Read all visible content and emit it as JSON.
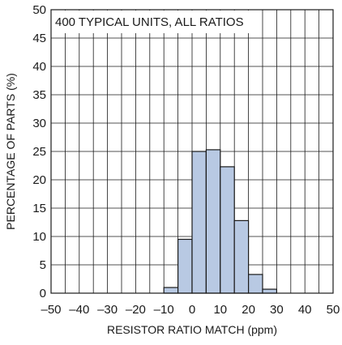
{
  "chart_data": {
    "type": "bar",
    "title": "",
    "annotation": "400 TYPICAL UNITS, ALL RATIOS",
    "xlabel": "RESISTOR RATIO MATCH (ppm)",
    "ylabel": "PERCENTAGE OF PARTS (%)",
    "xlim": [
      -50,
      50
    ],
    "ylim": [
      0,
      50
    ],
    "x_ticks": [
      "–50",
      "–40",
      "–30",
      "–20",
      "–10",
      "0",
      "10",
      "20",
      "30",
      "40",
      "50"
    ],
    "y_ticks": [
      "0",
      "5",
      "10",
      "15",
      "20",
      "25",
      "30",
      "35",
      "40",
      "45",
      "50"
    ],
    "grid": true,
    "bar_color": "#b8c9e3",
    "bins": [
      {
        "start": -10,
        "end": -5,
        "value": 1.0
      },
      {
        "start": -5,
        "end": 0,
        "value": 9.5
      },
      {
        "start": 0,
        "end": 5,
        "value": 25.0
      },
      {
        "start": 5,
        "end": 10,
        "value": 25.3
      },
      {
        "start": 10,
        "end": 15,
        "value": 22.3
      },
      {
        "start": 15,
        "end": 20,
        "value": 12.8
      },
      {
        "start": 20,
        "end": 25,
        "value": 3.3
      },
      {
        "start": 25,
        "end": 30,
        "value": 0.7
      }
    ]
  }
}
